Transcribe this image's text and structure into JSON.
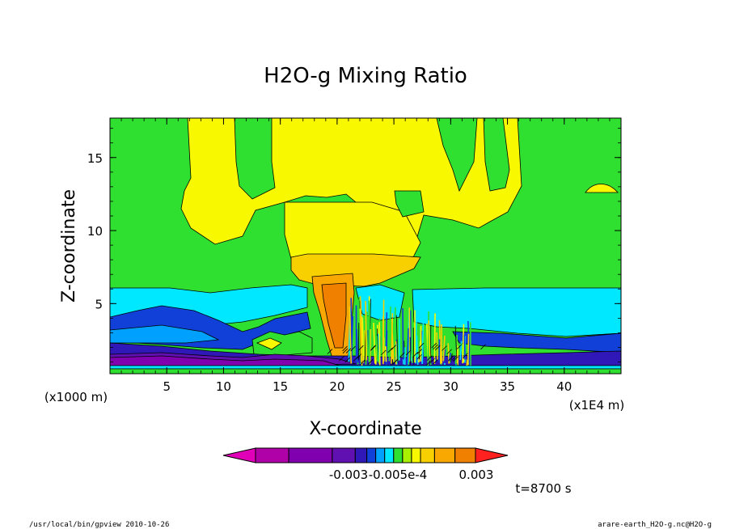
{
  "chart_data": {
    "type": "heatmap",
    "title": "H2O-g Mixing Ratio",
    "xlabel": "X-coordinate",
    "ylabel": "Z-coordinate",
    "x_units_left": "(x1000 m)",
    "x_units_right": "(x1E4 m)",
    "x_ticks": [
      5,
      10,
      15,
      20,
      25,
      30,
      35,
      40
    ],
    "y_ticks": [
      5,
      10,
      15
    ],
    "xlim": [
      0,
      45
    ],
    "ylim": [
      0.2,
      17.7
    ],
    "colorbar": {
      "colors": [
        "#e000b8",
        "#b000a8",
        "#8000b0",
        "#6010b0",
        "#3018b8",
        "#1040d8",
        "#00a0ff",
        "#00e8ff",
        "#30e030",
        "#a8f000",
        "#f8f800",
        "#f8d000",
        "#f8a800",
        "#f08000",
        "#ff2020"
      ],
      "tick_labels": [
        "-0.003",
        "-0.005e-4",
        "0.003"
      ]
    },
    "annotation_time": "t=8700 s"
  },
  "footer": {
    "left": "/usr/local/bin/gpview  2010-10-26",
    "right": "arare-earth_H2O-g.nc@H2O-g"
  }
}
